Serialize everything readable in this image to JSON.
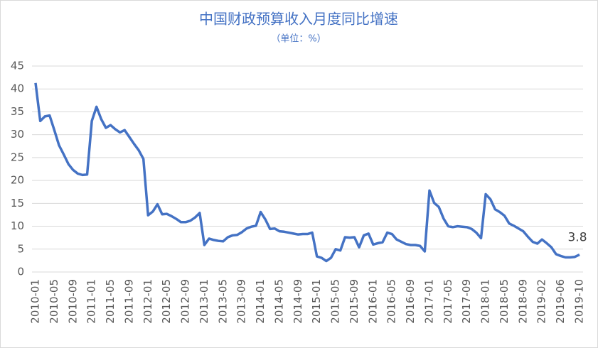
{
  "chart_data": {
    "type": "line",
    "title": "中国财政预算收入月度同比增速",
    "subtitle": "（单位：%）",
    "categories": [
      "2010-01",
      null,
      null,
      null,
      "2010-05",
      null,
      null,
      null,
      "2010-09",
      null,
      null,
      null,
      "2011-01",
      null,
      null,
      null,
      "2011-05",
      null,
      null,
      null,
      "2011-09",
      null,
      null,
      null,
      "2012-01",
      null,
      null,
      null,
      "2012-05",
      null,
      null,
      null,
      "2012-09",
      null,
      null,
      null,
      "2013-01",
      null,
      null,
      null,
      "2013-05",
      null,
      null,
      null,
      "2013-09",
      null,
      null,
      null,
      "2014-01",
      null,
      null,
      null,
      "2014-05",
      null,
      null,
      null,
      "2014-09",
      null,
      null,
      null,
      "2015-01",
      null,
      null,
      null,
      "2015-05",
      null,
      null,
      null,
      "2015-09",
      null,
      null,
      null,
      "2016-01",
      null,
      null,
      null,
      "2016-05",
      null,
      null,
      null,
      "2016-09",
      null,
      null,
      null,
      "2017-01",
      null,
      null,
      null,
      "2017-05",
      null,
      null,
      null,
      "2017-09",
      null,
      null,
      null,
      "2018-01",
      null,
      null,
      null,
      "2018-05",
      null,
      null,
      null,
      "2018-09",
      null,
      null,
      null,
      "2019-02",
      null,
      null,
      null,
      "2019-06",
      null,
      null,
      null,
      "2019-10"
    ],
    "values": [
      41.3,
      33,
      34,
      34.2,
      31,
      27.7,
      25.7,
      23.6,
      22.3,
      21.5,
      21.2,
      21.3,
      33,
      36.1,
      33.4,
      31.5,
      32.1,
      31.2,
      30.5,
      31,
      29.5,
      28,
      26.6,
      24.7,
      12.4,
      13.2,
      14.8,
      12.6,
      12.7,
      12.2,
      11.6,
      10.9,
      10.9,
      11.2,
      11.9,
      12.9,
      5.9,
      7.3,
      7,
      6.8,
      6.7,
      7.6,
      8,
      8.1,
      8.7,
      9.5,
      9.9,
      10.1,
      13.1,
      11.5,
      9.4,
      9.5,
      8.9,
      8.8,
      8.6,
      8.4,
      8.2,
      8.3,
      8.3,
      8.6,
      3.4,
      3.1,
      2.4,
      3.1,
      5,
      4.7,
      7.6,
      7.5,
      7.6,
      5.4,
      8,
      8.4,
      6,
      6.3,
      6.5,
      8.6,
      8.3,
      7.1,
      6.6,
      6.1,
      5.9,
      5.9,
      5.7,
      4.5,
      17.8,
      15.1,
      14.2,
      11.7,
      10,
      9.8,
      10,
      9.9,
      9.8,
      9.4,
      8.6,
      7.4,
      17,
      15.9,
      13.7,
      13.1,
      12.3,
      10.6,
      10.1,
      9.5,
      8.9,
      7.7,
      6.6,
      6.2,
      7.1,
      6.3,
      5.4,
      3.9,
      3.5,
      3.2,
      3.2,
      3.3,
      3.8
    ],
    "color": "#4472c4",
    "ylim": [
      0,
      45
    ],
    "yticks": [
      0,
      5,
      10,
      15,
      20,
      25,
      30,
      35,
      40,
      45
    ],
    "grid": true
  }
}
